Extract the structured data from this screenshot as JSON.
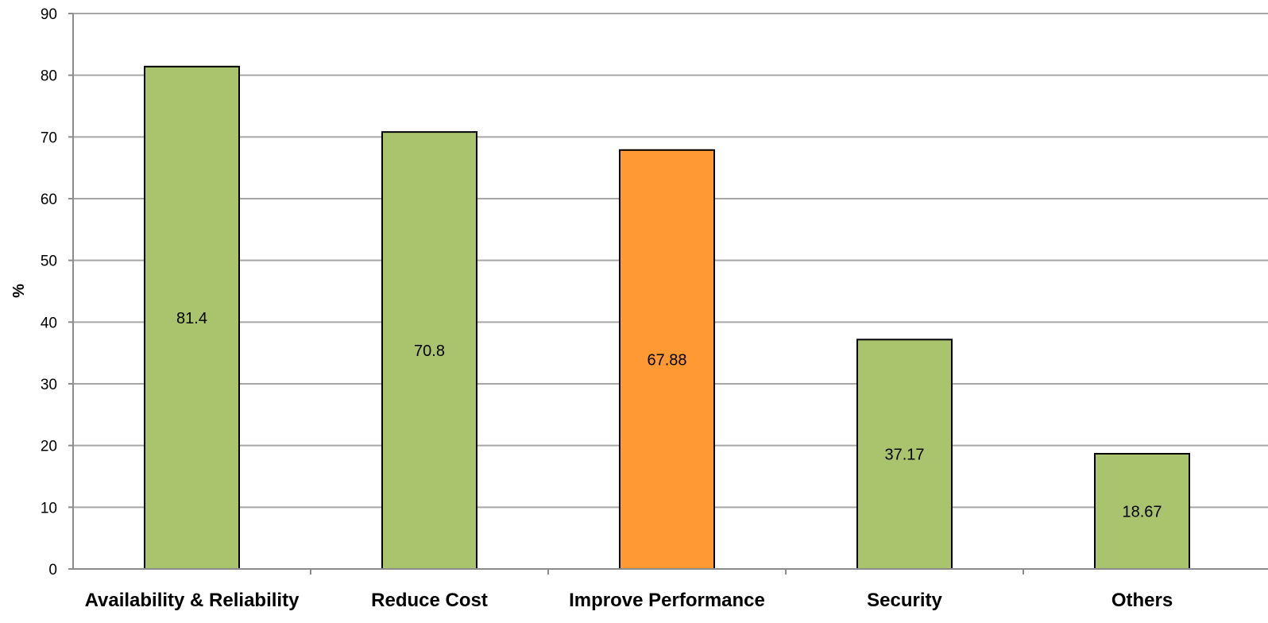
{
  "chart_data": {
    "type": "bar",
    "categories": [
      "Availability & Reliability",
      "Reduce Cost",
      "Improve Performance",
      "Security",
      "Others"
    ],
    "values": [
      81.4,
      70.8,
      67.88,
      37.17,
      18.67
    ],
    "data_labels": [
      "81.4",
      "70.8",
      "67.88",
      "37.17",
      "18.67"
    ],
    "title": "",
    "xlabel": "",
    "ylabel": "%",
    "ylim": [
      0,
      90
    ],
    "yticks": [
      0,
      10,
      20,
      30,
      40,
      50,
      60,
      70,
      80,
      90
    ],
    "grid": true,
    "legend": "none",
    "colors": {
      "default_bar": "#A9C46C",
      "highlight_bar": "#FF9933",
      "bar_border": "#000000",
      "gridline": "#A6A6A6",
      "axis": "#8C8C8C"
    },
    "highlight_category": "Improve Performance"
  }
}
